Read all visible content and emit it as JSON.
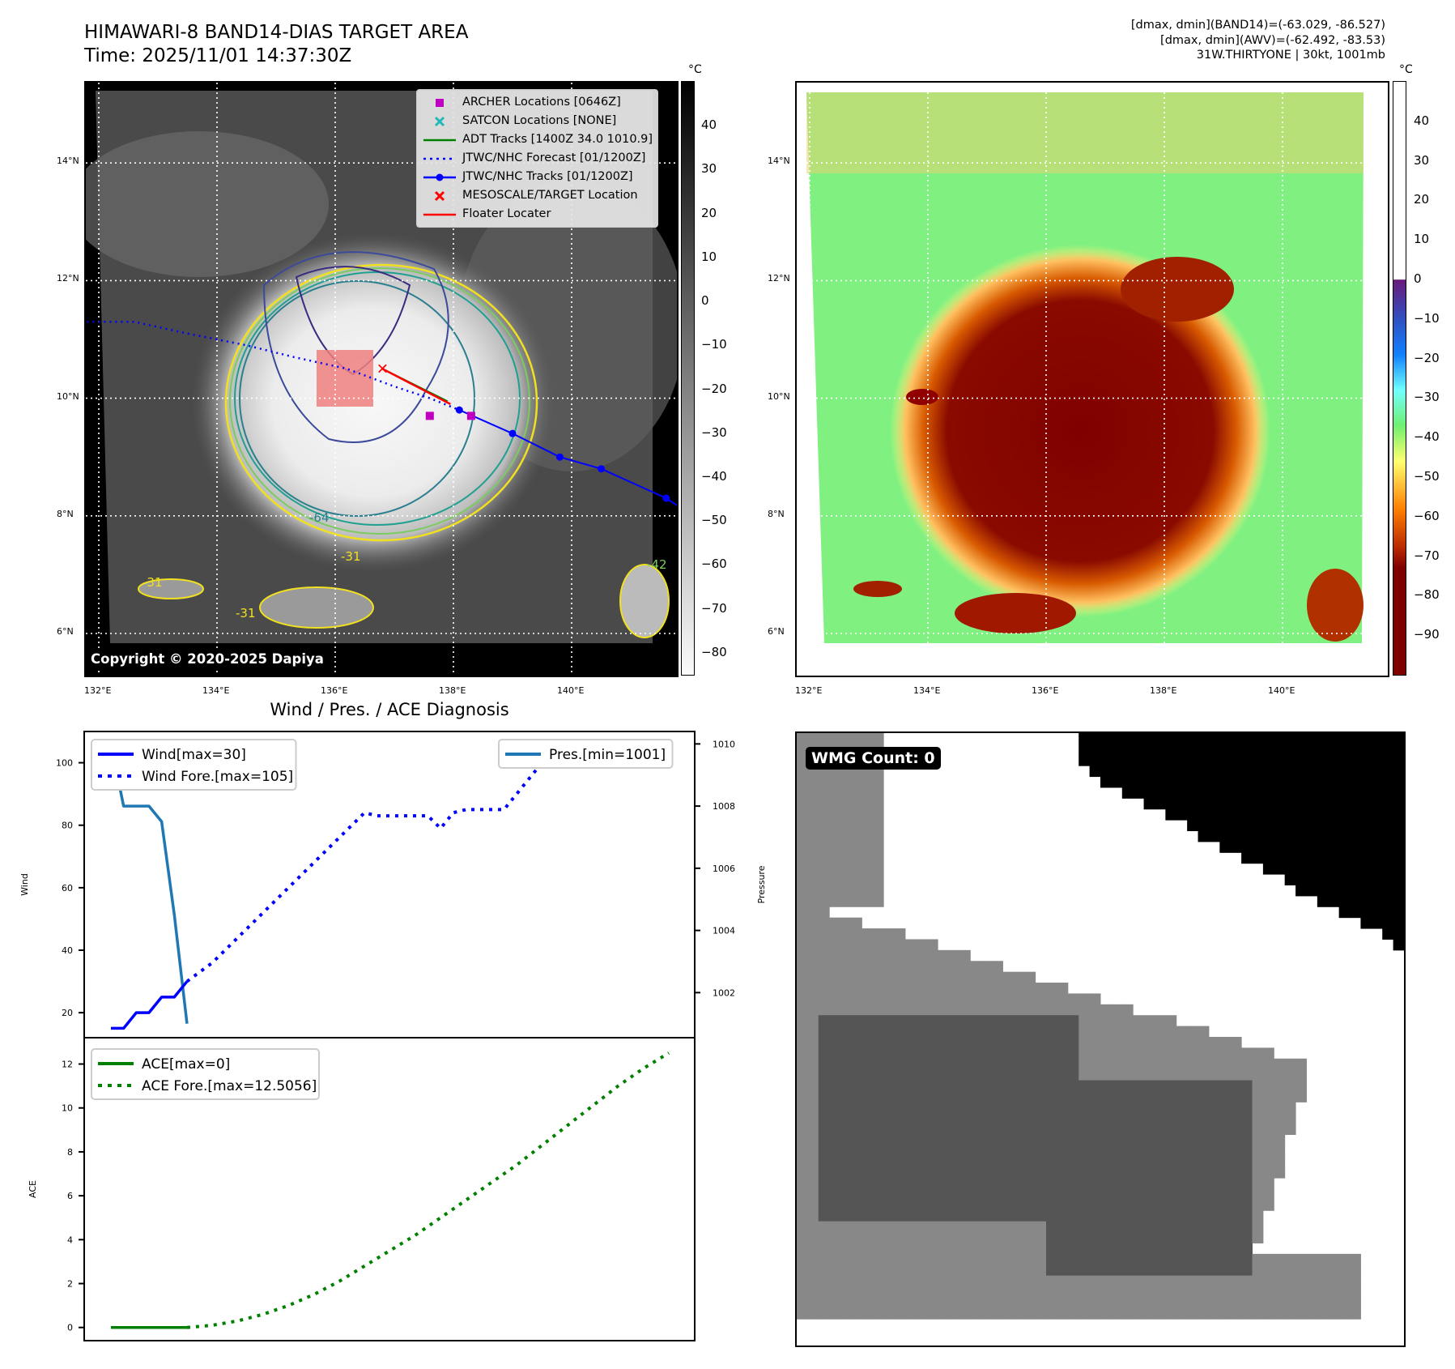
{
  "header": {
    "title_line1": "HIMAWARI-8 BAND14-DIAS TARGET AREA",
    "title_line2": "Time: 2025/11/01 14:37:30Z",
    "info_line1": "[dmax, dmin](BAND14)=(-63.029, -86.527)",
    "info_line2": "[dmax, dmin](AWV)=(-62.492, -83.53)",
    "info_line3": "31W.THIRTYONE | 30kt, 1001mb"
  },
  "map_left": {
    "lat_ticks": [
      "14°N",
      "12°N",
      "10°N",
      "8°N",
      "6°N"
    ],
    "lon_ticks": [
      "132°E",
      "134°E",
      "136°E",
      "138°E",
      "140°E"
    ],
    "colorbar_unit": "°C",
    "colorbar_ticks": [
      "40",
      "30",
      "20",
      "10",
      "0",
      "−10",
      "−20",
      "−30",
      "−40",
      "−50",
      "−60",
      "−70",
      "−80"
    ],
    "colorbar_range": [
      50,
      -85
    ],
    "contour_labels": [
      "-64",
      "-31",
      "-31",
      "-31",
      "-42"
    ],
    "copyright": "Copyright © 2020-2025 Dapiya",
    "legend": [
      {
        "label": "ARCHER Locations [0646Z]",
        "symbol": "square",
        "color": "#c000c0"
      },
      {
        "label": "SATCON Locations [NONE]",
        "symbol": "x",
        "color": "#20b8b8"
      },
      {
        "label": "ADT Tracks [1400Z 34.0 1010.9]",
        "symbol": "line",
        "color": "#008000"
      },
      {
        "label": "JTWC/NHC Forecast [01/1200Z]",
        "symbol": "dotted",
        "color": "#0000ff"
      },
      {
        "label": "JTWC/NHC Tracks [01/1200Z]",
        "symbol": "line-dot",
        "color": "#0000ff"
      },
      {
        "label": "MESOSCALE/TARGET Location",
        "symbol": "x",
        "color": "#ff0000"
      },
      {
        "label": "Floater Locater",
        "symbol": "line",
        "color": "#ff0000"
      }
    ],
    "jtwc_track_points": [
      [
        138.1,
        9.8
      ],
      [
        139.0,
        9.4
      ],
      [
        139.8,
        9.0
      ],
      [
        140.5,
        8.8
      ],
      [
        141.6,
        8.3
      ]
    ],
    "archer_points": [
      [
        137.6,
        9.7
      ],
      [
        138.3,
        9.7
      ]
    ],
    "target_location": [
      136.8,
      10.5
    ]
  },
  "map_right": {
    "lat_ticks": [
      "14°N",
      "12°N",
      "10°N",
      "8°N",
      "6°N"
    ],
    "lon_ticks": [
      "132°E",
      "134°E",
      "136°E",
      "138°E",
      "140°E"
    ],
    "colorbar_unit": "°C",
    "colorbar_ticks": [
      "40",
      "30",
      "20",
      "10",
      "0",
      "−10",
      "−20",
      "−30",
      "−40",
      "−50",
      "−60",
      "−70",
      "−80",
      "−90"
    ],
    "colorbar_range": [
      50,
      -100
    ]
  },
  "diagnosis": {
    "title": "Wind / Pres. / ACE Diagnosis"
  },
  "wmg": {
    "label": "WMG Count: 0"
  },
  "chart_data": [
    {
      "type": "line",
      "title": "Wind / Pres. / ACE Diagnosis",
      "xlabel": "",
      "ylabel": "Wind",
      "y2label": "Pressure",
      "ylim": [
        12,
        110
      ],
      "y2lim": [
        1000.55,
        1010.4
      ],
      "yticks": [
        "100",
        "80",
        "60",
        "40",
        "20"
      ],
      "y2ticks": [
        "1010",
        "1008",
        "1006",
        "1004",
        "1002"
      ],
      "x": [
        0,
        1,
        2,
        3,
        4,
        5,
        6,
        7,
        8,
        9,
        10,
        11,
        12,
        13,
        14,
        15,
        16,
        17,
        18,
        19,
        20,
        21,
        22,
        23,
        24,
        25,
        26,
        27,
        28,
        29,
        30,
        31,
        32,
        33,
        34,
        35,
        36,
        37,
        38,
        39,
        40,
        41,
        42,
        43,
        44,
        45,
        46,
        47,
        48,
        49
      ],
      "series": [
        {
          "name": "Wind[max=30]",
          "axis": "left",
          "style": "solid",
          "color": "#0000ff",
          "x": [
            0,
            3,
            6,
            9,
            12,
            15,
            18
          ],
          "values": [
            15,
            15,
            20,
            20,
            25,
            25,
            30
          ]
        },
        {
          "name": "Wind Fore.[max=105]",
          "axis": "left",
          "style": "dotted",
          "color": "#0000ff",
          "x": [
            18,
            21,
            24,
            27,
            30,
            33,
            36,
            39,
            42,
            45,
            48,
            51,
            54,
            57,
            60,
            63,
            66,
            69,
            72,
            75,
            78,
            81,
            84,
            87,
            90,
            93,
            96,
            99,
            102,
            105,
            108,
            111,
            114,
            117,
            120,
            123,
            126,
            129,
            132
          ],
          "values": [
            30,
            33,
            36,
            40,
            44,
            48,
            52,
            56,
            60,
            64,
            68,
            72,
            76,
            80,
            84,
            83,
            83,
            83,
            83,
            83,
            79,
            84,
            85,
            85,
            85,
            85,
            90,
            95,
            100,
            100,
            100,
            100,
            100,
            104,
            105,
            105,
            105,
            105,
            105
          ]
        },
        {
          "name": "Pres.[min=1001]",
          "axis": "right",
          "style": "solid",
          "color": "#1f77b4",
          "x": [
            0,
            3,
            6,
            9,
            12,
            15,
            18
          ],
          "values": [
            1010,
            1008,
            1008,
            1008,
            1007.5,
            1004.5,
            1001
          ]
        }
      ]
    },
    {
      "type": "line",
      "title": "",
      "xlabel": "",
      "ylabel": "ACE",
      "ylim": [
        -0.6,
        13.2
      ],
      "yticks": [
        "0",
        "2",
        "4",
        "6",
        "8",
        "10",
        "12"
      ],
      "series": [
        {
          "name": "ACE[max=0]",
          "style": "solid",
          "color": "#008000",
          "x": [
            0,
            18
          ],
          "values": [
            0,
            0
          ]
        },
        {
          "name": "ACE Fore.[max=12.5056]",
          "style": "dotted",
          "color": "#008000",
          "x": [
            18,
            24,
            30,
            36,
            42,
            48,
            54,
            60,
            66,
            72,
            78,
            84,
            90,
            96,
            102,
            108,
            114,
            120,
            126,
            132
          ],
          "values": [
            0,
            0.1,
            0.3,
            0.6,
            1.0,
            1.5,
            2.1,
            2.8,
            3.5,
            4.2,
            5.0,
            5.8,
            6.6,
            7.4,
            8.3,
            9.2,
            10.1,
            11.0,
            11.8,
            12.5056
          ]
        }
      ]
    }
  ]
}
